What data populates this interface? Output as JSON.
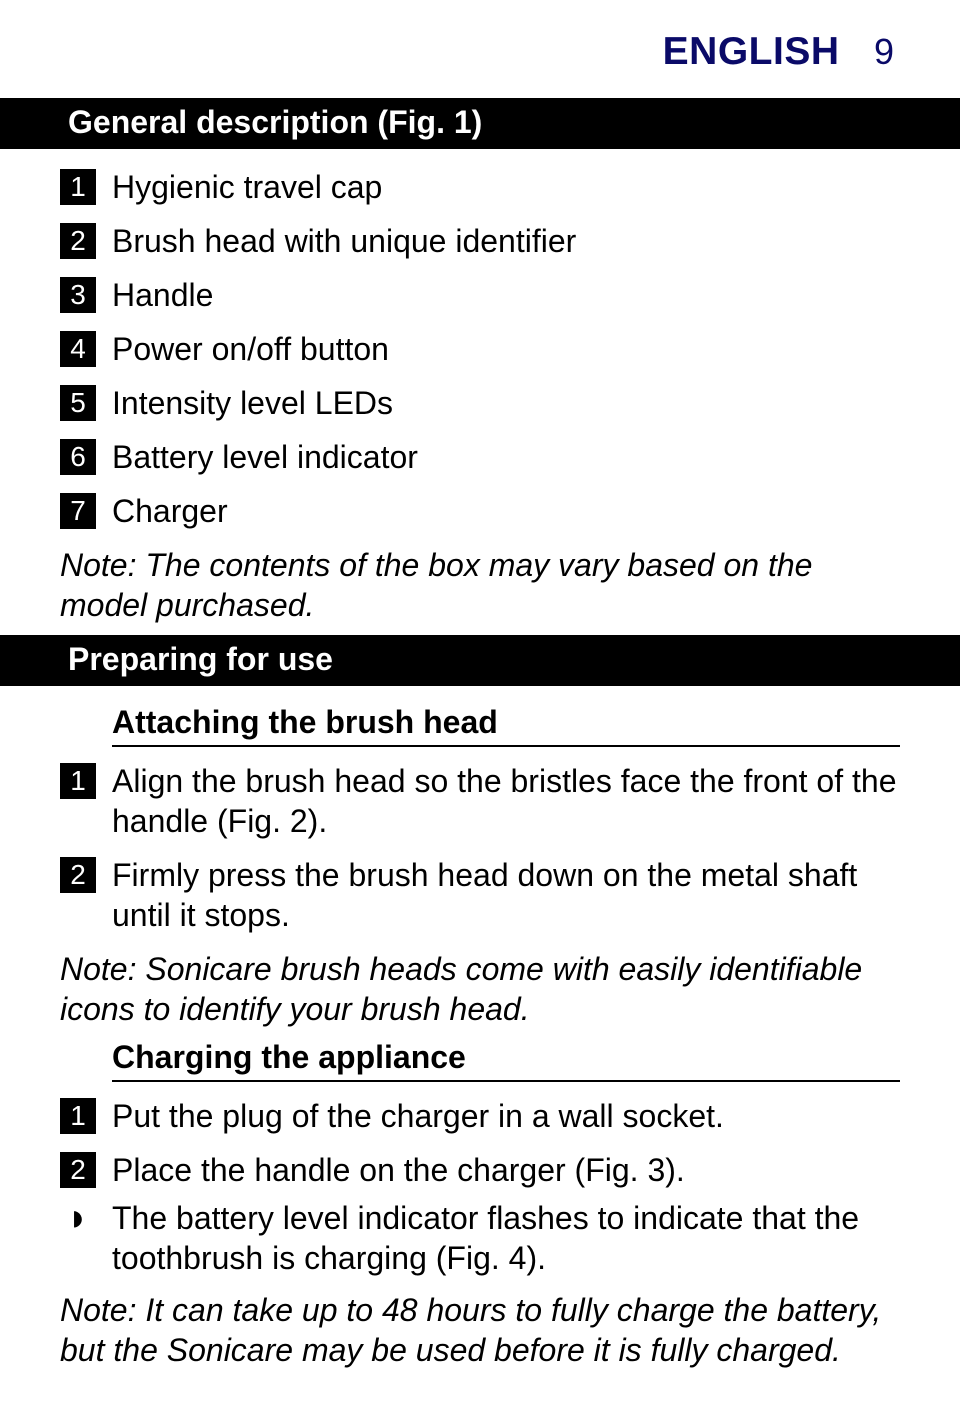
{
  "header": {
    "language": "ENGLISH",
    "page_number": "9"
  },
  "section_general": {
    "bar_title": "General description (Fig. 1)",
    "items": [
      {
        "num": "1",
        "text": "Hygienic travel cap"
      },
      {
        "num": "2",
        "text": "Brush head with unique identifier"
      },
      {
        "num": "3",
        "text": "Handle"
      },
      {
        "num": "4",
        "text": "Power on/off button"
      },
      {
        "num": "5",
        "text": "Intensity level LEDs"
      },
      {
        "num": "6",
        "text": "Battery level indicator"
      },
      {
        "num": "7",
        "text": "Charger"
      }
    ],
    "note": "Note: The contents of the box may vary based on the model purchased."
  },
  "section_preparing": {
    "bar_title": "Preparing for use",
    "sub_attaching": {
      "heading": "Attaching the brush head",
      "items": [
        {
          "num": "1",
          "text": "Align the brush head so the bristles face the front of the handle (Fig. 2)."
        },
        {
          "num": "2",
          "text": "Firmly press the brush head down on the metal shaft until it stops."
        }
      ],
      "note": "Note: Sonicare brush heads come with easily identifiable icons to identify your brush head."
    },
    "sub_charging": {
      "heading": "Charging the appliance",
      "items": [
        {
          "num": "1",
          "text": "Put the plug of the charger in a wall socket."
        },
        {
          "num": "2",
          "text": "Place the handle on the charger (Fig. 3)."
        }
      ],
      "result": "The battery level indicator flashes to indicate that the toothbrush is charging (Fig. 4).",
      "note": "Note: It can take up to 48 hours to fully charge the battery, but the Sonicare may be used before it is fully charged."
    }
  },
  "colors": {
    "header_text": "#0a0a68",
    "section_bar_bg": "#000000",
    "section_bar_text": "#ffffff",
    "numbox_bg": "#000000",
    "numbox_text": "#ffffff",
    "body_text": "#000000",
    "background": "#ffffff"
  },
  "typography": {
    "header_lang_size_pt": 29,
    "header_lang_weight": 700,
    "pagenum_size_pt": 27,
    "section_bar_size_pt": 24,
    "body_size_pt": 24,
    "numbox_size_pt": 21
  }
}
